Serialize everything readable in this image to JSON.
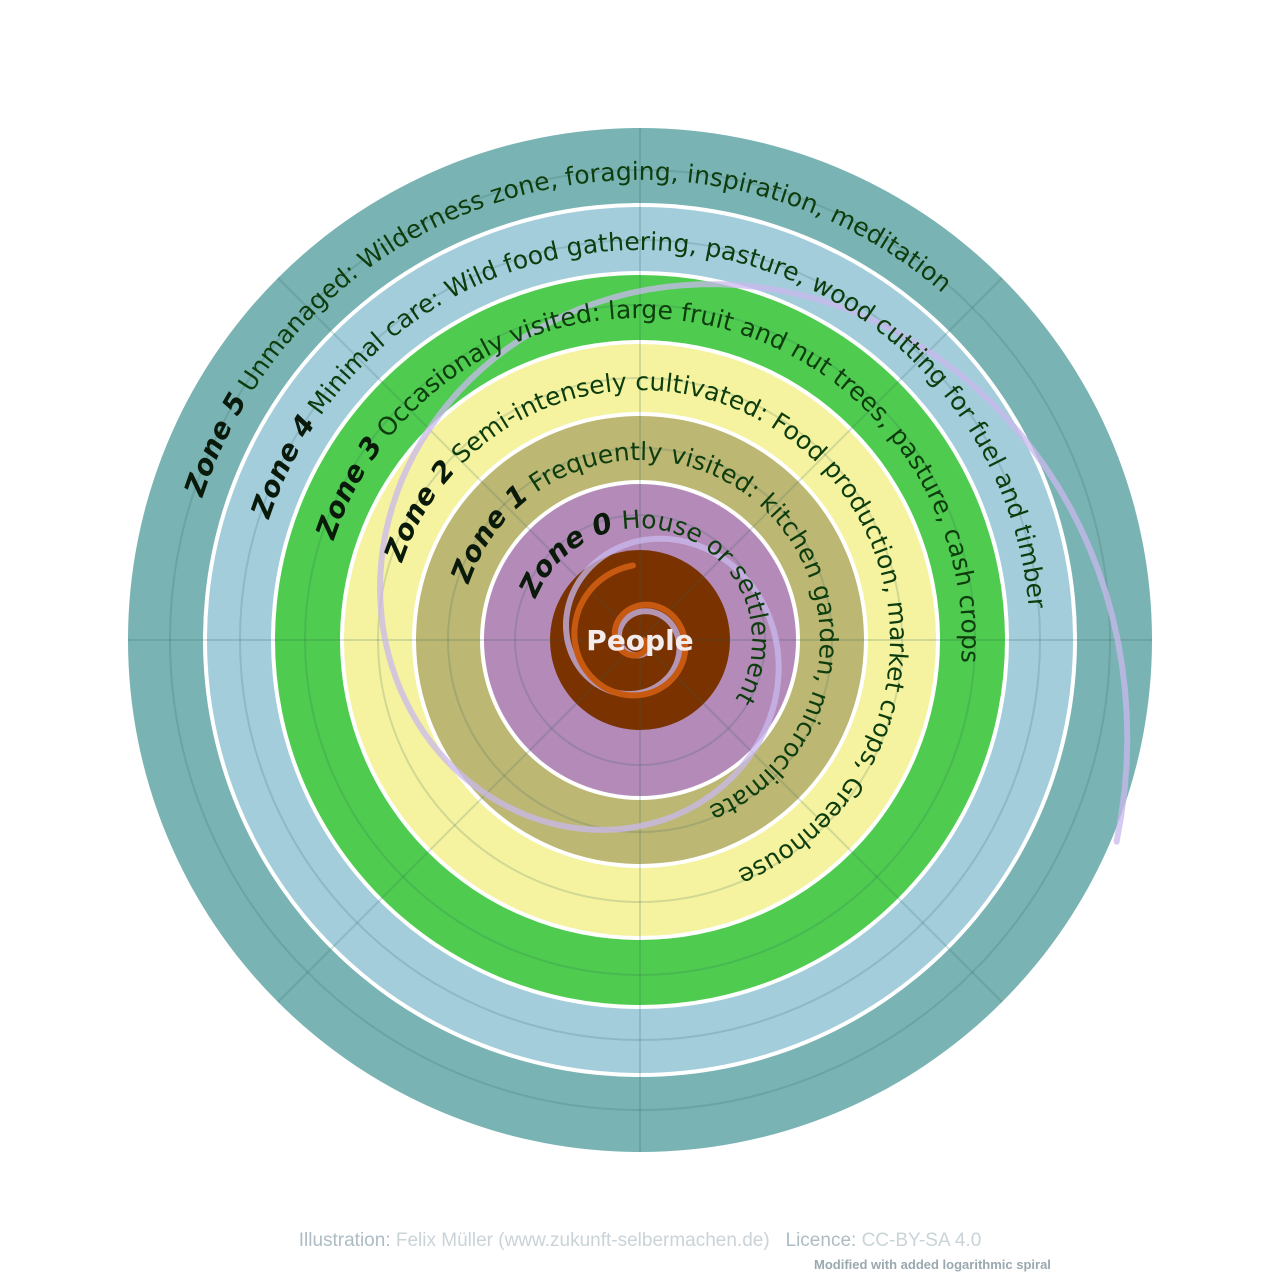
{
  "diagram": {
    "center": {
      "label": "People",
      "color": "#7a3300"
    },
    "zones": [
      {
        "number": "Zone 0",
        "description": "House or settlement",
        "color": "#b38ab8"
      },
      {
        "number": "Zone 1",
        "description": "Frequently visited: kitchen garden, microclimate",
        "color": "#bdb774"
      },
      {
        "number": "Zone 2",
        "description": "Semi-intensely cultivated: Food production, market crops, Greenhouse",
        "color": "#f6f3a0"
      },
      {
        "number": "Zone 3",
        "description": "Occasionaly visited: large fruit and nut trees, pasture, cash crops",
        "color": "#4fcc4f"
      },
      {
        "number": "Zone 4",
        "description": "Minimal care: Wild food gathering, pasture, wood cutting for fuel and timber",
        "color": "#a3cddb"
      },
      {
        "number": "Zone 5",
        "description": "Unmanaged: Wilderness zone, foraging, inspiration, meditation",
        "color": "#7ab3b3"
      }
    ],
    "spiral_color": "#c9b8ee"
  },
  "credits": {
    "illustration_label": "Illustration:",
    "illustration_value": "Felix Müller (www.zukunft-selbermachen.de)",
    "licence_label": "Licence:",
    "licence_value": "CC-BY-SA 4.0",
    "modification": "Modified with added logarithmic spiral"
  }
}
